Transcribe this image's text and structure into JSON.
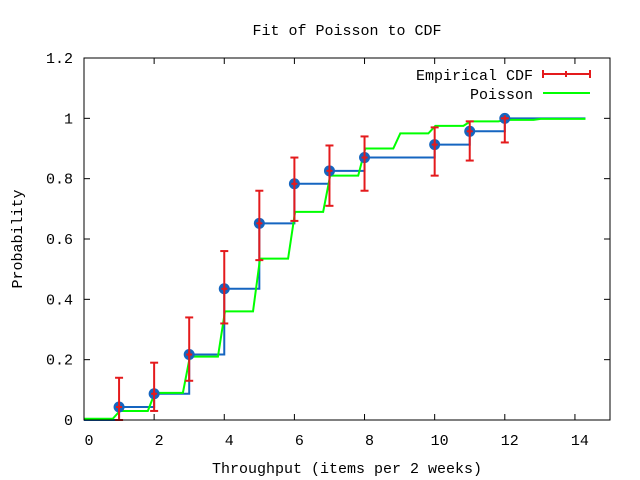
{
  "chart_data": {
    "type": "line",
    "title": "Fit of Poisson to CDF",
    "xlabel": "Throughput (items per 2 weeks)",
    "ylabel": "Probability",
    "xlim": [
      0,
      15
    ],
    "ylim": [
      0,
      1.2
    ],
    "xticks": [
      0,
      2,
      4,
      6,
      8,
      10,
      12,
      14
    ],
    "yticks": [
      0,
      0.2,
      0.4,
      0.6,
      0.8,
      1,
      1.2
    ],
    "xtick_labels": [
      "0",
      "2",
      "4",
      "6",
      "8",
      "10",
      "12",
      "14"
    ],
    "ytick_labels": [
      "0",
      "0.2",
      "0.4",
      "0.6",
      "0.8",
      "1",
      "1.2"
    ],
    "grid": false,
    "legend_position": "top-right",
    "series": [
      {
        "name": "Empirical CDF",
        "style": "step with points and error bars",
        "color": "#e41a1c",
        "step_color": "#1565c0",
        "x": [
          1,
          2,
          3,
          4,
          5,
          6,
          7,
          8,
          10,
          11,
          12
        ],
        "y": [
          0.043,
          0.087,
          0.217,
          0.435,
          0.652,
          0.783,
          0.826,
          0.87,
          0.913,
          0.957,
          1.0
        ],
        "ylow": [
          0.0,
          0.03,
          0.13,
          0.32,
          0.53,
          0.66,
          0.71,
          0.76,
          0.81,
          0.86,
          0.92
        ],
        "yhigh": [
          0.14,
          0.19,
          0.34,
          0.56,
          0.76,
          0.87,
          0.91,
          0.94,
          0.97,
          0.99,
          1.0
        ]
      },
      {
        "name": "Poisson",
        "style": "step",
        "color": "#00ff00",
        "x": [
          0,
          1,
          2,
          3,
          4,
          5,
          6,
          7,
          8,
          9,
          10,
          11,
          12,
          13,
          14
        ],
        "y": [
          0.004,
          0.03,
          0.09,
          0.21,
          0.36,
          0.535,
          0.69,
          0.81,
          0.9,
          0.95,
          0.975,
          0.99,
          0.995,
          0.998,
          0.998
        ]
      }
    ]
  }
}
